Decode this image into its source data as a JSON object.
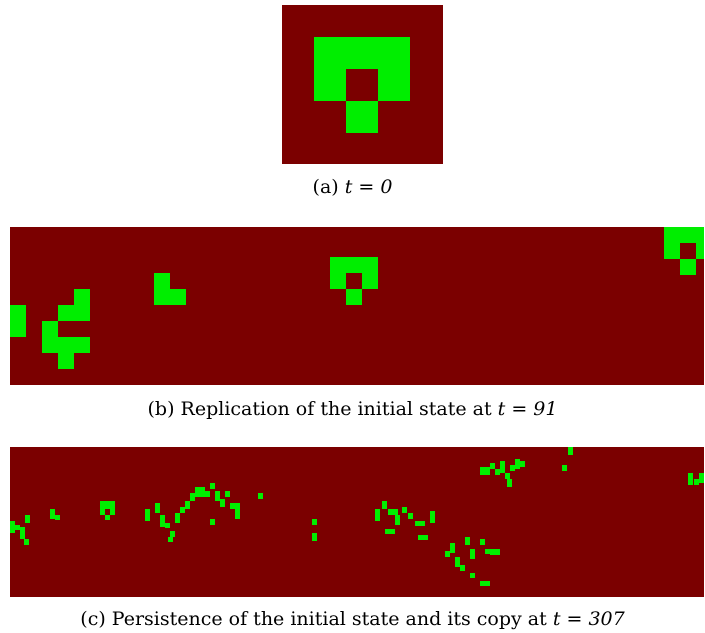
{
  "colors": {
    "background": "#7b0000",
    "alive": "#00ee00"
  },
  "figures": [
    {
      "caption_label": "(a)",
      "caption_text": "",
      "caption_math": "t = 0"
    },
    {
      "caption_label": "(b)",
      "caption_text": "Replication of the initial state at",
      "caption_math": "t = 91"
    },
    {
      "caption_label": "(c)",
      "caption_text": "Persistence of the initial state and its copy at",
      "caption_math": "t = 307"
    }
  ]
}
